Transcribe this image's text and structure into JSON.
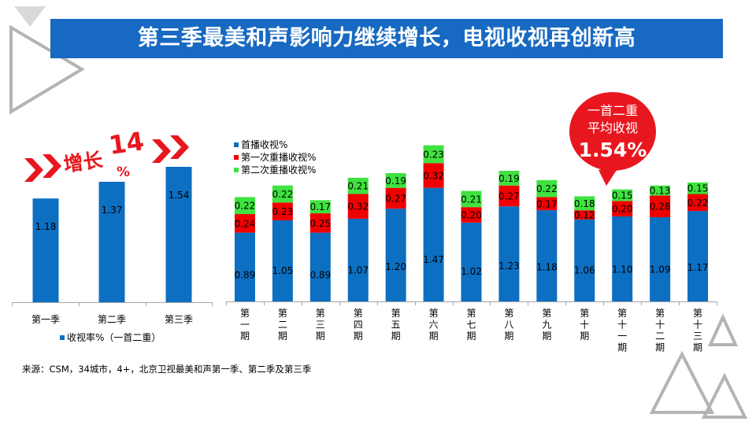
{
  "title": "第三季最美和声影响力继续增长，电视收视再创新高",
  "source": "来源：CSM，34城市，4+，北京卫视最美和声第一季、第二季及第三季",
  "growth": {
    "label": "增长",
    "number": "14",
    "unit": "%"
  },
  "callout": {
    "line1": "一首二重",
    "line2": "平均收视",
    "value": "1.54%"
  },
  "colors": {
    "title_bg": "#1769c2",
    "blue": "#0c6fc2",
    "red": "#f00000",
    "green": "#3fe23f",
    "accent_red": "#e8171f",
    "deco_gray": "#b4b4b4"
  },
  "chart_data": [
    {
      "type": "bar",
      "categories": [
        "第一季",
        "第二季",
        "第三季"
      ],
      "series": [
        {
          "name": "收视率%（一首二重）",
          "values": [
            1.18,
            1.37,
            1.54
          ]
        }
      ],
      "legend_position": "bottom-left",
      "grid": false
    },
    {
      "type": "bar",
      "stacked": true,
      "categories": [
        "第一期",
        "第二期",
        "第三期",
        "第四期",
        "第五期",
        "第六期",
        "第七期",
        "第八期",
        "第九期",
        "第十期",
        "第十一期",
        "第十二期",
        "第十三期"
      ],
      "series": [
        {
          "name": "首播收视%",
          "values": [
            0.89,
            1.05,
            0.89,
            1.07,
            1.2,
            1.47,
            1.02,
            1.23,
            1.18,
            1.06,
            1.1,
            1.09,
            1.17
          ]
        },
        {
          "name": "第一次重播收视%",
          "values": [
            0.24,
            0.23,
            0.25,
            0.32,
            0.27,
            0.32,
            0.2,
            0.27,
            0.17,
            0.12,
            0.2,
            0.28,
            0.22
          ]
        },
        {
          "name": "第二次重播收视%",
          "values": [
            0.22,
            0.22,
            0.17,
            0.21,
            0.19,
            0.23,
            0.21,
            0.19,
            0.22,
            0.18,
            0.15,
            0.13,
            0.15
          ]
        }
      ],
      "legend_position": "top-left",
      "grid": false
    }
  ]
}
